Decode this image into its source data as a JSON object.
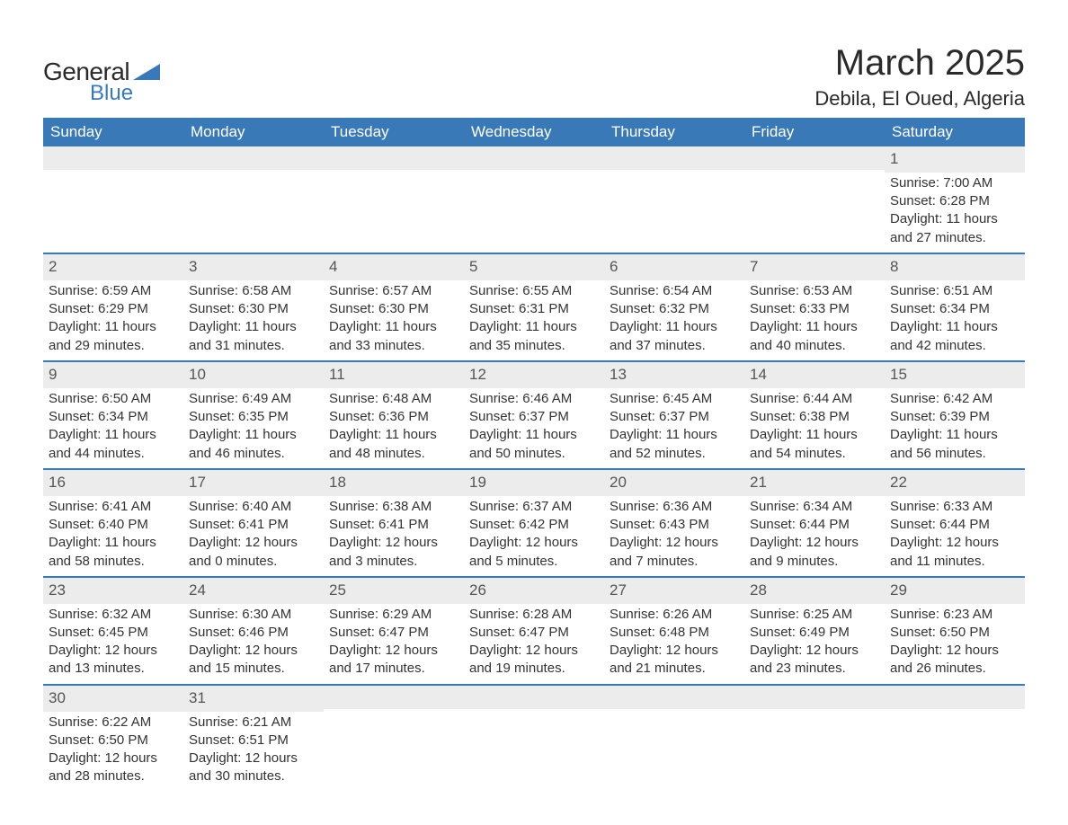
{
  "brand": {
    "general": "General",
    "blue": "Blue",
    "accent_color": "#3a79b7"
  },
  "title": {
    "month": "March 2025",
    "location": "Debila, El Oued, Algeria"
  },
  "calendar": {
    "type": "table",
    "header_bg": "#3a79b7",
    "header_fg": "#ffffff",
    "row_divider_color": "#3a79b7",
    "daynum_bg": "#ececec",
    "text_color": "#333333",
    "font_size_body": 15,
    "font_size_header": 17,
    "days": [
      "Sunday",
      "Monday",
      "Tuesday",
      "Wednesday",
      "Thursday",
      "Friday",
      "Saturday"
    ],
    "weeks": [
      [
        null,
        null,
        null,
        null,
        null,
        null,
        {
          "n": "1",
          "sunrise": "Sunrise: 7:00 AM",
          "sunset": "Sunset: 6:28 PM",
          "dl1": "Daylight: 11 hours",
          "dl2": "and 27 minutes."
        }
      ],
      [
        {
          "n": "2",
          "sunrise": "Sunrise: 6:59 AM",
          "sunset": "Sunset: 6:29 PM",
          "dl1": "Daylight: 11 hours",
          "dl2": "and 29 minutes."
        },
        {
          "n": "3",
          "sunrise": "Sunrise: 6:58 AM",
          "sunset": "Sunset: 6:30 PM",
          "dl1": "Daylight: 11 hours",
          "dl2": "and 31 minutes."
        },
        {
          "n": "4",
          "sunrise": "Sunrise: 6:57 AM",
          "sunset": "Sunset: 6:30 PM",
          "dl1": "Daylight: 11 hours",
          "dl2": "and 33 minutes."
        },
        {
          "n": "5",
          "sunrise": "Sunrise: 6:55 AM",
          "sunset": "Sunset: 6:31 PM",
          "dl1": "Daylight: 11 hours",
          "dl2": "and 35 minutes."
        },
        {
          "n": "6",
          "sunrise": "Sunrise: 6:54 AM",
          "sunset": "Sunset: 6:32 PM",
          "dl1": "Daylight: 11 hours",
          "dl2": "and 37 minutes."
        },
        {
          "n": "7",
          "sunrise": "Sunrise: 6:53 AM",
          "sunset": "Sunset: 6:33 PM",
          "dl1": "Daylight: 11 hours",
          "dl2": "and 40 minutes."
        },
        {
          "n": "8",
          "sunrise": "Sunrise: 6:51 AM",
          "sunset": "Sunset: 6:34 PM",
          "dl1": "Daylight: 11 hours",
          "dl2": "and 42 minutes."
        }
      ],
      [
        {
          "n": "9",
          "sunrise": "Sunrise: 6:50 AM",
          "sunset": "Sunset: 6:34 PM",
          "dl1": "Daylight: 11 hours",
          "dl2": "and 44 minutes."
        },
        {
          "n": "10",
          "sunrise": "Sunrise: 6:49 AM",
          "sunset": "Sunset: 6:35 PM",
          "dl1": "Daylight: 11 hours",
          "dl2": "and 46 minutes."
        },
        {
          "n": "11",
          "sunrise": "Sunrise: 6:48 AM",
          "sunset": "Sunset: 6:36 PM",
          "dl1": "Daylight: 11 hours",
          "dl2": "and 48 minutes."
        },
        {
          "n": "12",
          "sunrise": "Sunrise: 6:46 AM",
          "sunset": "Sunset: 6:37 PM",
          "dl1": "Daylight: 11 hours",
          "dl2": "and 50 minutes."
        },
        {
          "n": "13",
          "sunrise": "Sunrise: 6:45 AM",
          "sunset": "Sunset: 6:37 PM",
          "dl1": "Daylight: 11 hours",
          "dl2": "and 52 minutes."
        },
        {
          "n": "14",
          "sunrise": "Sunrise: 6:44 AM",
          "sunset": "Sunset: 6:38 PM",
          "dl1": "Daylight: 11 hours",
          "dl2": "and 54 minutes."
        },
        {
          "n": "15",
          "sunrise": "Sunrise: 6:42 AM",
          "sunset": "Sunset: 6:39 PM",
          "dl1": "Daylight: 11 hours",
          "dl2": "and 56 minutes."
        }
      ],
      [
        {
          "n": "16",
          "sunrise": "Sunrise: 6:41 AM",
          "sunset": "Sunset: 6:40 PM",
          "dl1": "Daylight: 11 hours",
          "dl2": "and 58 minutes."
        },
        {
          "n": "17",
          "sunrise": "Sunrise: 6:40 AM",
          "sunset": "Sunset: 6:41 PM",
          "dl1": "Daylight: 12 hours",
          "dl2": "and 0 minutes."
        },
        {
          "n": "18",
          "sunrise": "Sunrise: 6:38 AM",
          "sunset": "Sunset: 6:41 PM",
          "dl1": "Daylight: 12 hours",
          "dl2": "and 3 minutes."
        },
        {
          "n": "19",
          "sunrise": "Sunrise: 6:37 AM",
          "sunset": "Sunset: 6:42 PM",
          "dl1": "Daylight: 12 hours",
          "dl2": "and 5 minutes."
        },
        {
          "n": "20",
          "sunrise": "Sunrise: 6:36 AM",
          "sunset": "Sunset: 6:43 PM",
          "dl1": "Daylight: 12 hours",
          "dl2": "and 7 minutes."
        },
        {
          "n": "21",
          "sunrise": "Sunrise: 6:34 AM",
          "sunset": "Sunset: 6:44 PM",
          "dl1": "Daylight: 12 hours",
          "dl2": "and 9 minutes."
        },
        {
          "n": "22",
          "sunrise": "Sunrise: 6:33 AM",
          "sunset": "Sunset: 6:44 PM",
          "dl1": "Daylight: 12 hours",
          "dl2": "and 11 minutes."
        }
      ],
      [
        {
          "n": "23",
          "sunrise": "Sunrise: 6:32 AM",
          "sunset": "Sunset: 6:45 PM",
          "dl1": "Daylight: 12 hours",
          "dl2": "and 13 minutes."
        },
        {
          "n": "24",
          "sunrise": "Sunrise: 6:30 AM",
          "sunset": "Sunset: 6:46 PM",
          "dl1": "Daylight: 12 hours",
          "dl2": "and 15 minutes."
        },
        {
          "n": "25",
          "sunrise": "Sunrise: 6:29 AM",
          "sunset": "Sunset: 6:47 PM",
          "dl1": "Daylight: 12 hours",
          "dl2": "and 17 minutes."
        },
        {
          "n": "26",
          "sunrise": "Sunrise: 6:28 AM",
          "sunset": "Sunset: 6:47 PM",
          "dl1": "Daylight: 12 hours",
          "dl2": "and 19 minutes."
        },
        {
          "n": "27",
          "sunrise": "Sunrise: 6:26 AM",
          "sunset": "Sunset: 6:48 PM",
          "dl1": "Daylight: 12 hours",
          "dl2": "and 21 minutes."
        },
        {
          "n": "28",
          "sunrise": "Sunrise: 6:25 AM",
          "sunset": "Sunset: 6:49 PM",
          "dl1": "Daylight: 12 hours",
          "dl2": "and 23 minutes."
        },
        {
          "n": "29",
          "sunrise": "Sunrise: 6:23 AM",
          "sunset": "Sunset: 6:50 PM",
          "dl1": "Daylight: 12 hours",
          "dl2": "and 26 minutes."
        }
      ],
      [
        {
          "n": "30",
          "sunrise": "Sunrise: 6:22 AM",
          "sunset": "Sunset: 6:50 PM",
          "dl1": "Daylight: 12 hours",
          "dl2": "and 28 minutes."
        },
        {
          "n": "31",
          "sunrise": "Sunrise: 6:21 AM",
          "sunset": "Sunset: 6:51 PM",
          "dl1": "Daylight: 12 hours",
          "dl2": "and 30 minutes."
        },
        null,
        null,
        null,
        null,
        null
      ]
    ]
  }
}
